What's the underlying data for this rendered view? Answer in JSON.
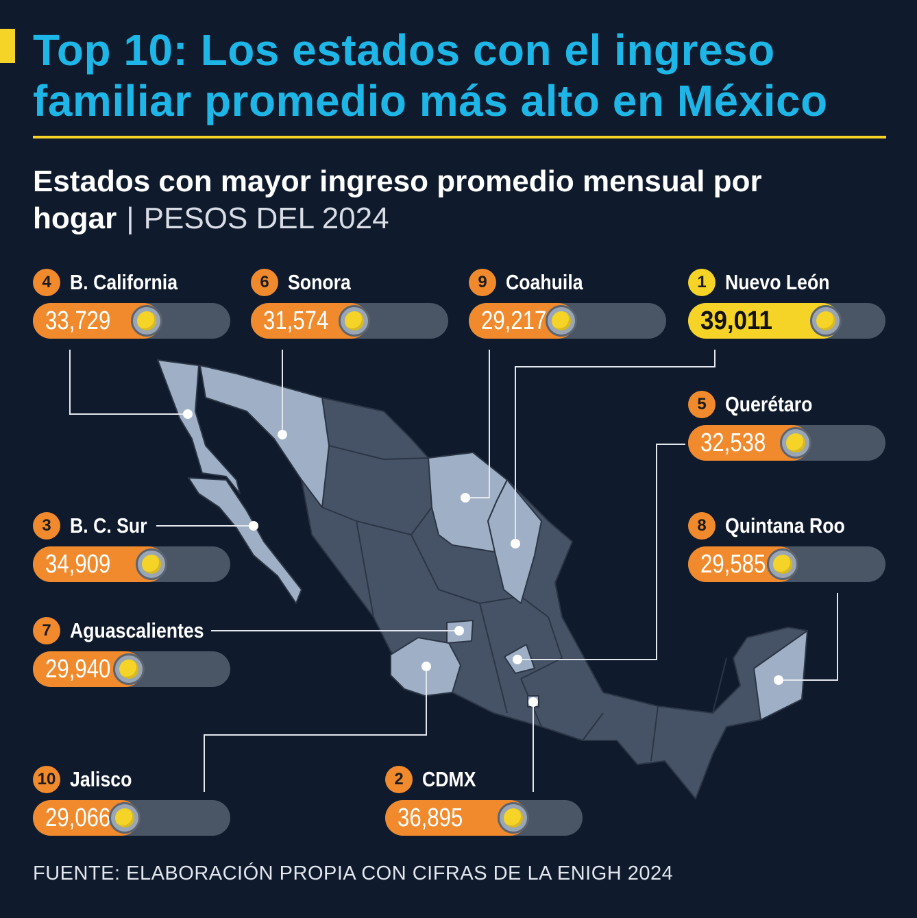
{
  "title": "Top 10: Los estados con el ingreso familiar promedio más alto en México",
  "subtitle_bold": "Estados con mayor ingreso promedio mensual por hogar",
  "subtitle_separator": "|",
  "subtitle_unit": "PESOS DEL 2024",
  "source": "FUENTE: ELABORACIÓN PROPIA CON CIFRAS DE LA ENIGH 2024",
  "colors": {
    "background": "#0f1a2c",
    "title": "#1eb6e6",
    "accent_yellow": "#f5d327",
    "bar_orange": "#f08a2c",
    "track": "#4a5565",
    "highlighted_states": "#9fb0c6",
    "other_states": "#465366"
  },
  "chart_data": {
    "type": "bar",
    "value_max": 39011,
    "entries": [
      {
        "rank": "1",
        "state": "Nuevo León",
        "value": 39011,
        "label": "39,011"
      },
      {
        "rank": "2",
        "state": "CDMX",
        "value": 36895,
        "label": "36,895"
      },
      {
        "rank": "3",
        "state": "B. C. Sur",
        "value": 34909,
        "label": "34,909"
      },
      {
        "rank": "4",
        "state": "B. California",
        "value": 33729,
        "label": "33,729"
      },
      {
        "rank": "5",
        "state": "Querétaro",
        "value": 32538,
        "label": "32,538"
      },
      {
        "rank": "6",
        "state": "Sonora",
        "value": 31574,
        "label": "31,574"
      },
      {
        "rank": "7",
        "state": "Aguascalientes",
        "value": 29940,
        "label": "29,940"
      },
      {
        "rank": "8",
        "state": "Quintana Roo",
        "value": 29585,
        "label": "29,585"
      },
      {
        "rank": "9",
        "state": "Coahuila",
        "value": 29217,
        "label": "29,217"
      },
      {
        "rank": "10",
        "state": "Jalisco",
        "value": 29066,
        "label": "29,066"
      }
    ]
  }
}
